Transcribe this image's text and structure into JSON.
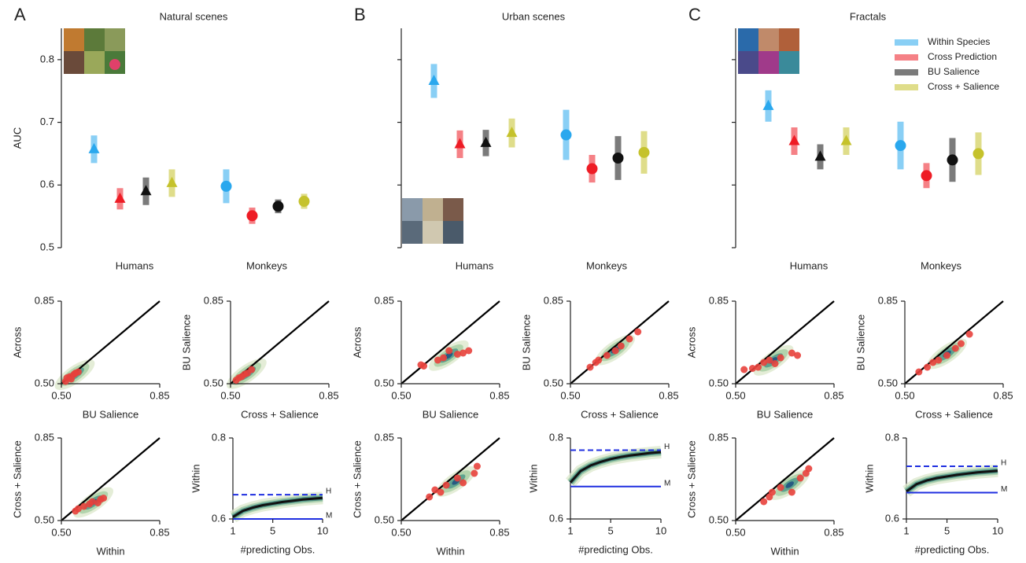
{
  "chart_data": [
    {
      "type": "dotplot",
      "label": "A",
      "title": "Natural scenes",
      "ylabel": "AUC",
      "categories": [
        "Humans",
        "Monkeys"
      ],
      "markers": [
        "triangle",
        "circle"
      ],
      "ylim": [
        0.5,
        0.85
      ],
      "yticks": [
        0.5,
        0.6,
        0.7,
        0.8
      ],
      "show_ytick_labels": true,
      "series": [
        {
          "color": "#2aa8ee",
          "values": [
            0.657,
            0.598
          ],
          "errors": [
            0.022,
            0.027
          ]
        },
        {
          "color": "#ee1c25",
          "values": [
            0.578,
            0.551
          ],
          "errors": [
            0.017,
            0.013
          ]
        },
        {
          "color": "#111111",
          "values": [
            0.59,
            0.566
          ],
          "errors": [
            0.022,
            0.011
          ]
        },
        {
          "color": "#c5c22c",
          "values": [
            0.603,
            0.574
          ],
          "errors": [
            0.022,
            0.012
          ]
        }
      ]
    },
    {
      "type": "dotplot",
      "label": "B",
      "title": "Urban scenes",
      "categories": [
        "Humans",
        "Monkeys"
      ],
      "markers": [
        "triangle",
        "circle"
      ],
      "ylim": [
        0.5,
        0.85
      ],
      "yticks": [
        0.5,
        0.6,
        0.7,
        0.8
      ],
      "show_ytick_labels": false,
      "series": [
        {
          "color": "#2aa8ee",
          "values": [
            0.766,
            0.68
          ],
          "errors": [
            0.027,
            0.04
          ]
        },
        {
          "color": "#ee1c25",
          "values": [
            0.665,
            0.626
          ],
          "errors": [
            0.022,
            0.022
          ]
        },
        {
          "color": "#111111",
          "values": [
            0.667,
            0.643
          ],
          "errors": [
            0.021,
            0.035
          ]
        },
        {
          "color": "#c5c22c",
          "values": [
            0.683,
            0.652
          ],
          "errors": [
            0.023,
            0.034
          ]
        }
      ]
    },
    {
      "type": "dotplot",
      "label": "C",
      "title": "Fractals",
      "categories": [
        "Humans",
        "Monkeys"
      ],
      "markers": [
        "triangle",
        "circle"
      ],
      "ylim": [
        0.5,
        0.85
      ],
      "yticks": [
        0.5,
        0.6,
        0.7,
        0.8
      ],
      "show_ytick_labels": false,
      "legend": "upper right",
      "series": [
        {
          "name": "Within Species",
          "color": "#2aa8ee",
          "values": [
            0.726,
            0.663
          ],
          "errors": [
            0.025,
            0.038
          ]
        },
        {
          "name": "Cross Prediction",
          "color": "#ee1c25",
          "values": [
            0.67,
            0.615
          ],
          "errors": [
            0.022,
            0.02
          ]
        },
        {
          "name": "BU Salience",
          "color": "#111111",
          "values": [
            0.645,
            0.64
          ],
          "errors": [
            0.02,
            0.035
          ]
        },
        {
          "name": "Cross + Salience",
          "color": "#c5c22c",
          "values": [
            0.67,
            0.65
          ],
          "errors": [
            0.022,
            0.034
          ]
        }
      ]
    },
    {
      "type": "scatter",
      "xlabel": "BU Salience",
      "ylabel": "Across",
      "color": "#e8413c",
      "xlim": [
        0.5,
        0.85
      ],
      "ylim": [
        0.5,
        0.85
      ],
      "xticks": [
        {
          "value": 0.5,
          "label": "0.50"
        },
        {
          "value": 0.85,
          "label": "0.85"
        }
      ],
      "yticks": [
        {
          "value": 0.5,
          "label": "0.50"
        },
        {
          "value": 0.85,
          "label": "0.85"
        }
      ],
      "x": [
        0.515,
        0.52,
        0.53,
        0.535,
        0.545,
        0.55,
        0.56
      ],
      "y": [
        0.51,
        0.525,
        0.53,
        0.52,
        0.54,
        0.545,
        0.55
      ]
    },
    {
      "type": "scatter",
      "xlabel": "Cross + Salience",
      "ylabel": "BU Salience",
      "color": "#e8413c",
      "xlim": [
        0.5,
        0.85
      ],
      "ylim": [
        0.5,
        0.85
      ],
      "xticks": [
        {
          "value": 0.5,
          "label": "0.50"
        },
        {
          "value": 0.85,
          "label": "0.85"
        }
      ],
      "yticks": [
        {
          "value": 0.5,
          "label": "0.50"
        },
        {
          "value": 0.85,
          "label": "0.85"
        }
      ],
      "x": [
        0.52,
        0.53,
        0.54,
        0.55,
        0.56,
        0.575
      ],
      "y": [
        0.515,
        0.525,
        0.53,
        0.54,
        0.545,
        0.56
      ]
    },
    {
      "type": "scatter",
      "xlabel": "Within",
      "ylabel": "Cross + Salience",
      "color": "#e8413c",
      "xlim": [
        0.5,
        0.85
      ],
      "ylim": [
        0.5,
        0.85
      ],
      "xticks": [
        {
          "value": 0.5,
          "label": "0.50"
        },
        {
          "value": 0.85,
          "label": "0.85"
        }
      ],
      "yticks": [
        {
          "value": 0.5,
          "label": "0.50"
        },
        {
          "value": 0.85,
          "label": "0.85"
        }
      ],
      "x": [
        0.55,
        0.56,
        0.58,
        0.6,
        0.61,
        0.63,
        0.64,
        0.65
      ],
      "y": [
        0.54,
        0.55,
        0.56,
        0.57,
        0.58,
        0.575,
        0.59,
        0.595
      ]
    },
    {
      "type": "line",
      "xlabel": "#predicting Obs.",
      "ylabel": "Within",
      "xlim": [
        1,
        10
      ],
      "ylim": [
        0.6,
        0.8
      ],
      "xticks": [
        1,
        5,
        10
      ],
      "yticks": [
        0.6,
        0.8
      ],
      "x": [
        1,
        2,
        3,
        4,
        5,
        6,
        7,
        8,
        9,
        10
      ],
      "series": [
        {
          "color": "#111111",
          "values": [
            0.605,
            0.62,
            0.628,
            0.634,
            0.638,
            0.642,
            0.645,
            0.648,
            0.65,
            0.652
          ]
        }
      ],
      "hline_color": "#1f2fe0",
      "hlines": [
        {
          "label": "H",
          "value": 0.66,
          "dashed": true
        },
        {
          "label": "M",
          "value": 0.6,
          "dashed": false
        }
      ]
    },
    {
      "type": "scatter",
      "xlabel": "BU Salience",
      "ylabel": "Across",
      "color": "#e8413c",
      "xlim": [
        0.5,
        0.85
      ],
      "ylim": [
        0.5,
        0.85
      ],
      "xticks": [
        {
          "value": 0.5,
          "label": "0.50"
        },
        {
          "value": 0.85,
          "label": "0.85"
        }
      ],
      "yticks": [
        {
          "value": 0.5,
          "label": "0.50"
        },
        {
          "value": 0.85,
          "label": "0.85"
        }
      ],
      "x": [
        0.57,
        0.58,
        0.63,
        0.65,
        0.67,
        0.7,
        0.72,
        0.74
      ],
      "y": [
        0.58,
        0.575,
        0.6,
        0.61,
        0.64,
        0.625,
        0.63,
        0.64
      ]
    },
    {
      "type": "scatter",
      "xlabel": "Cross + Salience",
      "ylabel": "BU Salience",
      "color": "#e8413c",
      "xlim": [
        0.5,
        0.85
      ],
      "ylim": [
        0.5,
        0.85
      ],
      "xticks": [
        {
          "value": 0.5,
          "label": "0.50"
        },
        {
          "value": 0.85,
          "label": "0.85"
        }
      ],
      "yticks": [
        {
          "value": 0.5,
          "label": "0.50"
        },
        {
          "value": 0.85,
          "label": "0.85"
        }
      ],
      "x": [
        0.57,
        0.59,
        0.6,
        0.63,
        0.66,
        0.68,
        0.71,
        0.74
      ],
      "y": [
        0.57,
        0.59,
        0.6,
        0.62,
        0.64,
        0.66,
        0.69,
        0.72
      ]
    },
    {
      "type": "scatter",
      "xlabel": "Within",
      "ylabel": "Cross + Salience",
      "color": "#e8413c",
      "xlim": [
        0.5,
        0.85
      ],
      "ylim": [
        0.5,
        0.85
      ],
      "xticks": [
        {
          "value": 0.5,
          "label": "0.50"
        },
        {
          "value": 0.85,
          "label": "0.85"
        }
      ],
      "yticks": [
        {
          "value": 0.5,
          "label": "0.50"
        },
        {
          "value": 0.85,
          "label": "0.85"
        }
      ],
      "x": [
        0.6,
        0.62,
        0.64,
        0.66,
        0.7,
        0.72,
        0.76,
        0.77
      ],
      "y": [
        0.6,
        0.63,
        0.62,
        0.65,
        0.68,
        0.66,
        0.7,
        0.73
      ]
    },
    {
      "type": "line",
      "xlabel": "#predicting Obs.",
      "ylabel": "Within",
      "xlim": [
        1,
        10
      ],
      "ylim": [
        0.6,
        0.8
      ],
      "xticks": [
        1,
        5,
        10
      ],
      "yticks": [
        0.6,
        0.8
      ],
      "x": [
        1,
        2,
        3,
        4,
        5,
        6,
        7,
        8,
        9,
        10
      ],
      "series": [
        {
          "color": "#111111",
          "values": [
            0.69,
            0.718,
            0.732,
            0.741,
            0.748,
            0.753,
            0.757,
            0.76,
            0.763,
            0.765
          ]
        }
      ],
      "hline_color": "#1f2fe0",
      "hlines": [
        {
          "label": "H",
          "value": 0.77,
          "dashed": true
        },
        {
          "label": "M",
          "value": 0.68,
          "dashed": false
        }
      ]
    },
    {
      "type": "scatter",
      "xlabel": "BU Salience",
      "ylabel": "Across",
      "color": "#e8413c",
      "xlim": [
        0.5,
        0.85
      ],
      "ylim": [
        0.5,
        0.85
      ],
      "xticks": [
        {
          "value": 0.5,
          "label": "0.50"
        },
        {
          "value": 0.85,
          "label": "0.85"
        }
      ],
      "yticks": [
        {
          "value": 0.5,
          "label": "0.50"
        },
        {
          "value": 0.85,
          "label": "0.85"
        }
      ],
      "x": [
        0.53,
        0.56,
        0.58,
        0.6,
        0.62,
        0.64,
        0.66,
        0.7,
        0.72
      ],
      "y": [
        0.56,
        0.565,
        0.57,
        0.59,
        0.6,
        0.585,
        0.61,
        0.63,
        0.62
      ]
    },
    {
      "type": "scatter",
      "xlabel": "Cross + Salience",
      "ylabel": "BU Salience",
      "color": "#e8413c",
      "xlim": [
        0.5,
        0.85
      ],
      "ylim": [
        0.5,
        0.85
      ],
      "xticks": [
        {
          "value": 0.5,
          "label": "0.50"
        },
        {
          "value": 0.85,
          "label": "0.85"
        }
      ],
      "yticks": [
        {
          "value": 0.5,
          "label": "0.50"
        },
        {
          "value": 0.85,
          "label": "0.85"
        }
      ],
      "x": [
        0.55,
        0.58,
        0.6,
        0.62,
        0.65,
        0.68,
        0.7,
        0.73
      ],
      "y": [
        0.55,
        0.57,
        0.59,
        0.6,
        0.62,
        0.65,
        0.67,
        0.71
      ]
    },
    {
      "type": "scatter",
      "xlabel": "Within",
      "ylabel": "Cross + Salience",
      "color": "#e8413c",
      "xlim": [
        0.5,
        0.85
      ],
      "ylim": [
        0.5,
        0.85
      ],
      "xticks": [
        {
          "value": 0.5,
          "label": "0.50"
        },
        {
          "value": 0.85,
          "label": "0.85"
        }
      ],
      "yticks": [
        {
          "value": 0.5,
          "label": "0.50"
        },
        {
          "value": 0.85,
          "label": "0.85"
        }
      ],
      "x": [
        0.6,
        0.62,
        0.63,
        0.66,
        0.7,
        0.73,
        0.75,
        0.76
      ],
      "y": [
        0.58,
        0.6,
        0.62,
        0.64,
        0.62,
        0.68,
        0.7,
        0.72
      ]
    },
    {
      "type": "line",
      "xlabel": "#predicting Obs.",
      "ylabel": "Within",
      "xlim": [
        1,
        10
      ],
      "ylim": [
        0.6,
        0.8
      ],
      "xticks": [
        1,
        5,
        10
      ],
      "yticks": [
        0.6,
        0.8
      ],
      "x": [
        1,
        2,
        3,
        4,
        5,
        6,
        7,
        8,
        9,
        10
      ],
      "series": [
        {
          "color": "#111111",
          "values": [
            0.668,
            0.686,
            0.695,
            0.701,
            0.705,
            0.709,
            0.712,
            0.715,
            0.717,
            0.719
          ]
        }
      ],
      "hline_color": "#1f2fe0",
      "hlines": [
        {
          "label": "H",
          "value": 0.73,
          "dashed": true
        },
        {
          "label": "M",
          "value": 0.665,
          "dashed": false
        }
      ]
    }
  ]
}
